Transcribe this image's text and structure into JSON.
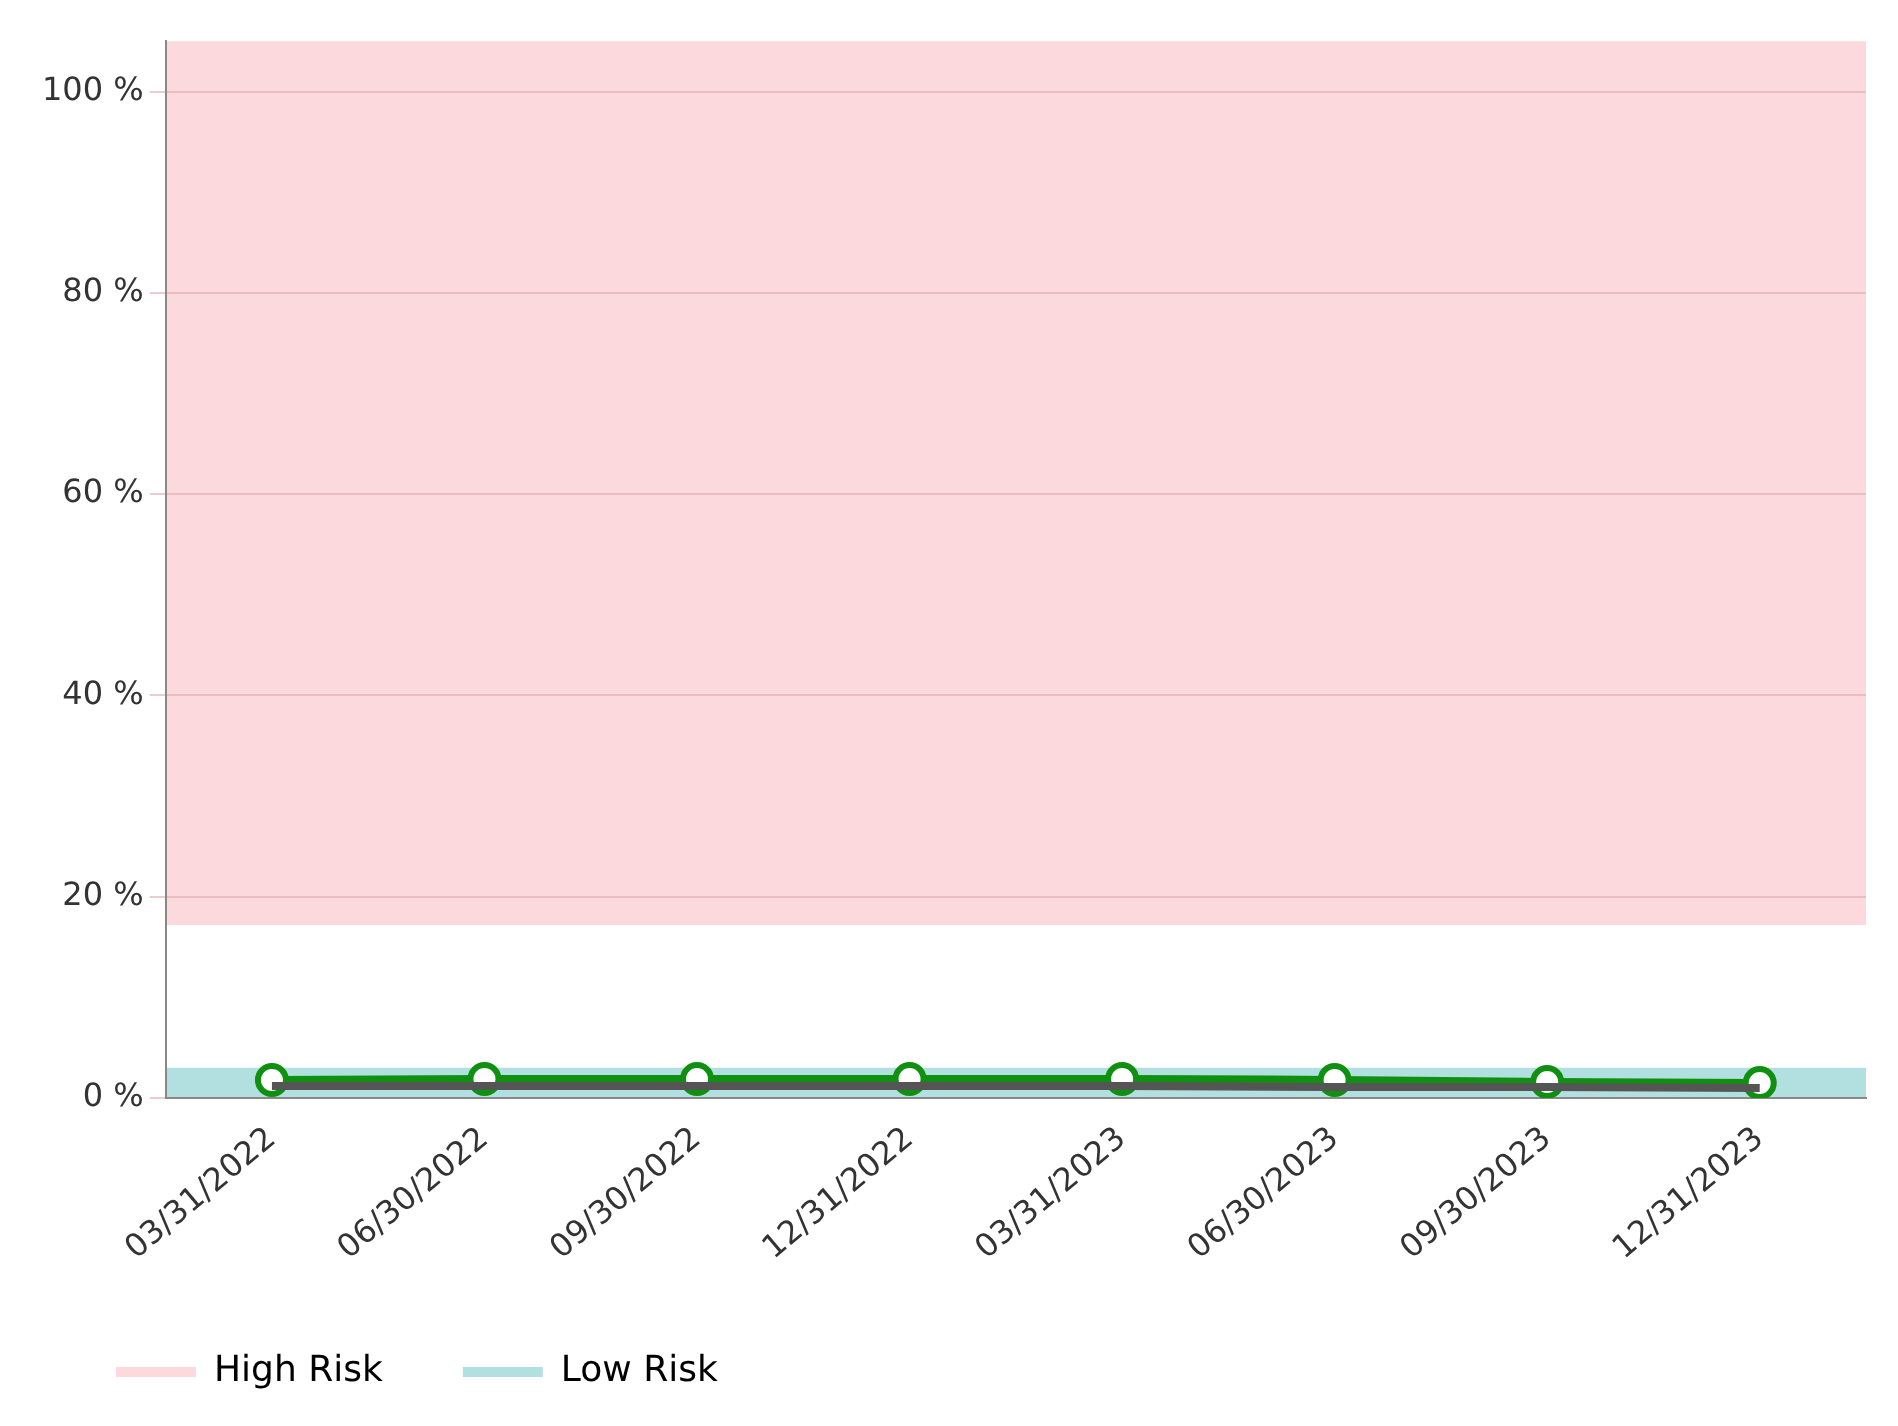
{
  "chart_data": {
    "type": "line",
    "categories": [
      "03/31/2022",
      "06/30/2022",
      "09/30/2022",
      "12/31/2022",
      "03/31/2023",
      "06/30/2023",
      "09/30/2023",
      "12/31/2023"
    ],
    "series": [
      {
        "color": "#555555",
        "values": [
          1.2,
          1.2,
          1.2,
          1.2,
          1.2,
          1.1,
          1.1,
          1.0
        ],
        "marker": "none"
      },
      {
        "color": "#109010",
        "values": [
          1.8,
          1.9,
          1.9,
          1.9,
          1.9,
          1.8,
          1.6,
          1.5
        ],
        "marker": "circle"
      }
    ],
    "ylim": [
      0,
      105
    ],
    "yticks": [
      {
        "value": 0,
        "label": "0 %"
      },
      {
        "value": 20,
        "label": "20 %"
      },
      {
        "value": 40,
        "label": "40 %"
      },
      {
        "value": 60,
        "label": "60 %"
      },
      {
        "value": 80,
        "label": "80 %"
      },
      {
        "value": 100,
        "label": "100 %"
      }
    ],
    "bands": [
      {
        "axis": "y",
        "from": 17.2,
        "to": 105,
        "label": "High Risk",
        "color": "#fbd9dc"
      },
      {
        "axis": "y",
        "from": 0,
        "to": 3,
        "label": "Low Risk",
        "color": "#b2dfe0"
      }
    ],
    "grid": "y",
    "legend": "bottom left"
  }
}
